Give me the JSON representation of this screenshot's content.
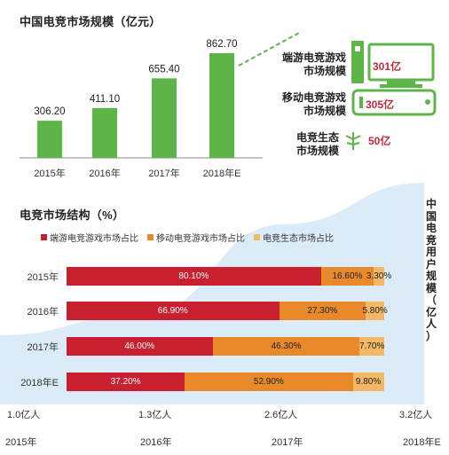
{
  "top_chart": {
    "title": "中国电竞市场规模（亿元）"
  },
  "segments": {
    "pc": {
      "label_line1": "端游电竞游戏",
      "label_line2": "市场规模",
      "value": "301亿"
    },
    "mobile": {
      "label_line1": "移动电竞游戏",
      "label_line2": "市场规模",
      "value": "305亿"
    },
    "eco": {
      "label_line1": "电竞生态",
      "label_line2": "市场规模",
      "value": "50亿"
    }
  },
  "bottom_chart": {
    "title": "电竞市场结构（%）",
    "right_axis_title": "中国电竞用户规模（亿人）",
    "user_ticks": [
      "1.0亿人",
      "1.3亿人",
      "2.6亿人",
      "3.2亿人"
    ],
    "year_ticks": [
      "2015年",
      "2016年",
      "2017年",
      "2018年E"
    ]
  },
  "chart_data": [
    {
      "type": "bar",
      "title": "中国电竞市场规模（亿元）",
      "categories": [
        "2015年",
        "2016年",
        "2017年",
        "2018年E"
      ],
      "values": [
        306.2,
        411.1,
        655.4,
        862.7
      ],
      "value_labels": [
        "306.20",
        "411.10",
        "655.40",
        "862.70"
      ],
      "color": "#5db54a"
    },
    {
      "type": "bar",
      "stacked": true,
      "orientation": "horizontal",
      "title": "电竞市场结构（%）",
      "categories": [
        "2015年",
        "2016年",
        "2017年",
        "2018年E"
      ],
      "series": [
        {
          "name": "端游电竞游戏市场占比",
          "color": "#c8202f",
          "values": [
            80.1,
            66.9,
            46.0,
            37.2
          ],
          "labels": [
            "80.10%",
            "66.90%",
            "46.00%",
            "37.20%"
          ]
        },
        {
          "name": "移动电竞游戏市场占比",
          "color": "#e8892a",
          "values": [
            16.6,
            27.3,
            46.3,
            52.9
          ],
          "labels": [
            "16.60%",
            "27.30%",
            "46.30%",
            "52.90%"
          ]
        },
        {
          "name": "电竞生态市场占比",
          "color": "#f2b866",
          "values": [
            3.3,
            5.8,
            7.7,
            9.8
          ],
          "labels": [
            "3.30%",
            "5.80%",
            "7.70%",
            "9.80%"
          ]
        }
      ],
      "xlim": [
        0,
        100
      ]
    },
    {
      "type": "area",
      "title": "中国电竞用户规模（亿人）",
      "categories": [
        "2015年",
        "2016年",
        "2017年",
        "2018年E"
      ],
      "values": [
        1.0,
        1.3,
        2.6,
        3.2
      ],
      "color": "#cfe6f5"
    }
  ]
}
